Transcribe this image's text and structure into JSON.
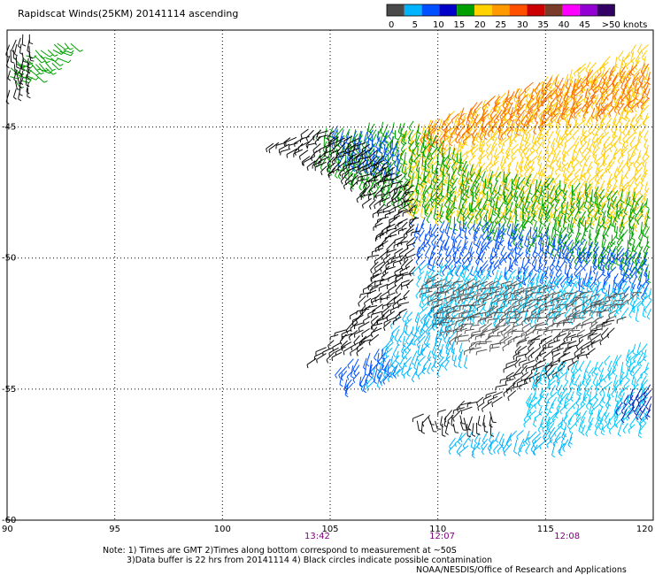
{
  "title": "Rapidscat Winds(25KM)  20141114  ascending",
  "colorbar": {
    "colors": [
      "#4a4a4a",
      "#00b4ff",
      "#0050ff",
      "#0000c8",
      "#00a000",
      "#ffd200",
      "#ff9a00",
      "#ff5000",
      "#cc0000",
      "#7a3c28",
      "#ff00ff",
      "#9400d3",
      "#330066"
    ],
    "labels": [
      "0",
      "5",
      "10",
      "15",
      "20",
      "25",
      "30",
      "35",
      "40",
      "45",
      ">50 knots"
    ]
  },
  "map": {
    "lon_range": [
      90,
      120
    ],
    "lat_range": [
      -60,
      -41.3
    ],
    "lon_ticks": [
      "90",
      "95",
      "100",
      "105",
      "110",
      "115",
      "120"
    ],
    "lat_ticks": [
      "-45",
      "-50",
      "-55",
      "-60"
    ],
    "grid": "dotted"
  },
  "times": [
    {
      "label": "13:42",
      "lon": 104.4
    },
    {
      "label": "12:07",
      "lon": 110.2
    },
    {
      "label": "12:08",
      "lon": 116.0
    }
  ],
  "notes": [
    "Note: 1) Times are GMT 2)Times along bottom correspond to measurement at ~50S",
    "3)Data buffer is 22 hrs from 20141114  4) Black circles indicate possible contamination",
    "NOAA/NESDIS/Office of Research and Applications"
  ],
  "wind_regions": [
    {
      "name": "nw-corner",
      "poly": [
        [
          90.1,
          -42.2
        ],
        [
          93.4,
          -41.6
        ],
        [
          91.5,
          -43.0
        ],
        [
          90.1,
          -43.4
        ]
      ],
      "color": "#00a000",
      "dir": 35
    },
    {
      "name": "nw-corner-calm",
      "poly": [
        [
          90.1,
          -41.5
        ],
        [
          91.2,
          -41.4
        ],
        [
          91.1,
          -43.7
        ],
        [
          90.1,
          -43.7
        ]
      ],
      "color": "#111111",
      "dir": 95
    },
    {
      "name": "north-high-winds",
      "poly": [
        [
          108.5,
          -45.0
        ],
        [
          114.0,
          -43.4
        ],
        [
          120,
          -41.6
        ],
        [
          120,
          -48.6
        ],
        [
          108.5,
          -48.2
        ]
      ],
      "color": "#ffcc00",
      "dir": 120
    },
    {
      "name": "north-orange-band",
      "poly": [
        [
          109.5,
          -44.8
        ],
        [
          114.5,
          -43.2
        ],
        [
          120,
          -42.4
        ],
        [
          120,
          -44.0
        ],
        [
          109.5,
          -45.6
        ]
      ],
      "color": "#ff6a00",
      "dir": 120
    },
    {
      "name": "north-green",
      "poly": [
        [
          104.5,
          -45.0
        ],
        [
          109,
          -44.6
        ],
        [
          112,
          -46.5
        ],
        [
          120,
          -47.5
        ],
        [
          120,
          -50.6
        ],
        [
          113,
          -49.0
        ],
        [
          108,
          -47.8
        ],
        [
          104.5,
          -46.2
        ]
      ],
      "color": "#00a000",
      "dir": 110
    },
    {
      "name": "north-blue",
      "poly": [
        [
          105,
          -44.9
        ],
        [
          108,
          -45.0
        ],
        [
          108.5,
          -46.8
        ],
        [
          105.5,
          -46.2
        ]
      ],
      "color": "#0050ff",
      "dir": 110
    },
    {
      "name": "central-blue",
      "poly": [
        [
          108.8,
          -48.4
        ],
        [
          113.5,
          -48.6
        ],
        [
          120,
          -49.8
        ],
        [
          120,
          -51.3
        ],
        [
          114.5,
          -50.6
        ],
        [
          109.3,
          -50.2
        ]
      ],
      "color": "#0050ff",
      "dir": 115
    },
    {
      "name": "central-cyan",
      "poly": [
        [
          109.0,
          -50.0
        ],
        [
          114.8,
          -50.4
        ],
        [
          120,
          -51.0
        ],
        [
          120,
          -52.0
        ],
        [
          113.5,
          -52.2
        ],
        [
          109.5,
          -52.5
        ]
      ],
      "color": "#00c8ff",
      "dir": 120
    },
    {
      "name": "west-cyan",
      "poly": [
        [
          108.3,
          -52.0
        ],
        [
          110.2,
          -51.6
        ],
        [
          111.5,
          -53.8
        ],
        [
          109.0,
          -54.3
        ],
        [
          106.5,
          -54.8
        ],
        [
          107.5,
          -53.6
        ]
      ],
      "color": "#00b4ff",
      "dir": 120
    },
    {
      "name": "lower-blue",
      "poly": [
        [
          105.2,
          -54.0
        ],
        [
          107.5,
          -53.4
        ],
        [
          108.4,
          -54.2
        ],
        [
          105.8,
          -54.9
        ]
      ],
      "color": "#0050ff",
      "dir": 115
    },
    {
      "name": "calm-west-arm",
      "poly": [
        [
          102,
          -45.6
        ],
        [
          104.5,
          -44.9
        ],
        [
          107,
          -45.6
        ],
        [
          109,
          -47.2
        ],
        [
          109.2,
          -49.0
        ],
        [
          108.7,
          -52.0
        ],
        [
          106.6,
          -53.4
        ],
        [
          104.0,
          -54.0
        ],
        [
          106.0,
          -52.4
        ],
        [
          107.2,
          -50.5
        ],
        [
          107.3,
          -48.0
        ],
        [
          105.5,
          -46.8
        ],
        [
          103.5,
          -46.0
        ]
      ],
      "color": "#0a0a0a",
      "dir": 150
    },
    {
      "name": "calm-center",
      "poly": [
        [
          109.4,
          -50.6
        ],
        [
          113.5,
          -50.8
        ],
        [
          117.5,
          -51.3
        ],
        [
          119.5,
          -51.3
        ],
        [
          118.0,
          -52.6
        ],
        [
          114.5,
          -53.0
        ],
        [
          112.0,
          -53.6
        ],
        [
          110.2,
          -52.6
        ]
      ],
      "color": "#555555",
      "dir": 160
    },
    {
      "name": "calm-south-arm",
      "poly": [
        [
          114.0,
          -53.0
        ],
        [
          116.5,
          -52.8
        ],
        [
          118.8,
          -52.2
        ],
        [
          117.0,
          -53.7
        ],
        [
          114.0,
          -55.0
        ],
        [
          111.0,
          -56.0
        ],
        [
          109.0,
          -56.0
        ],
        [
          113.0,
          -55.0
        ]
      ],
      "color": "#1a1a1a",
      "dir": 150
    },
    {
      "name": "south-cyan",
      "poly": [
        [
          114.5,
          -54.0
        ],
        [
          117.5,
          -53.8
        ],
        [
          120,
          -53.0
        ],
        [
          120,
          -56.5
        ],
        [
          116.5,
          -56.5
        ],
        [
          114.0,
          -56.2
        ]
      ],
      "color": "#00c8ff",
      "dir": 120
    },
    {
      "name": "south-dark-blue",
      "poly": [
        [
          118.5,
          -55.1
        ],
        [
          120,
          -54.8
        ],
        [
          120,
          -55.8
        ],
        [
          118.5,
          -55.9
        ]
      ],
      "color": "#1020b0",
      "dir": 120
    },
    {
      "name": "south-tail",
      "poly": [
        [
          110.8,
          -56.6
        ],
        [
          116.3,
          -56.4
        ],
        [
          116.3,
          -57.1
        ],
        [
          110.8,
          -57.2
        ]
      ],
      "color": "#00b4ff",
      "dir": 120
    },
    {
      "name": "south-dark-tail",
      "poly": [
        [
          108.7,
          -56.1
        ],
        [
          112.5,
          -55.8
        ],
        [
          112.5,
          -56.4
        ],
        [
          108.7,
          -56.5
        ]
      ],
      "color": "#111111",
      "dir": 90
    }
  ]
}
